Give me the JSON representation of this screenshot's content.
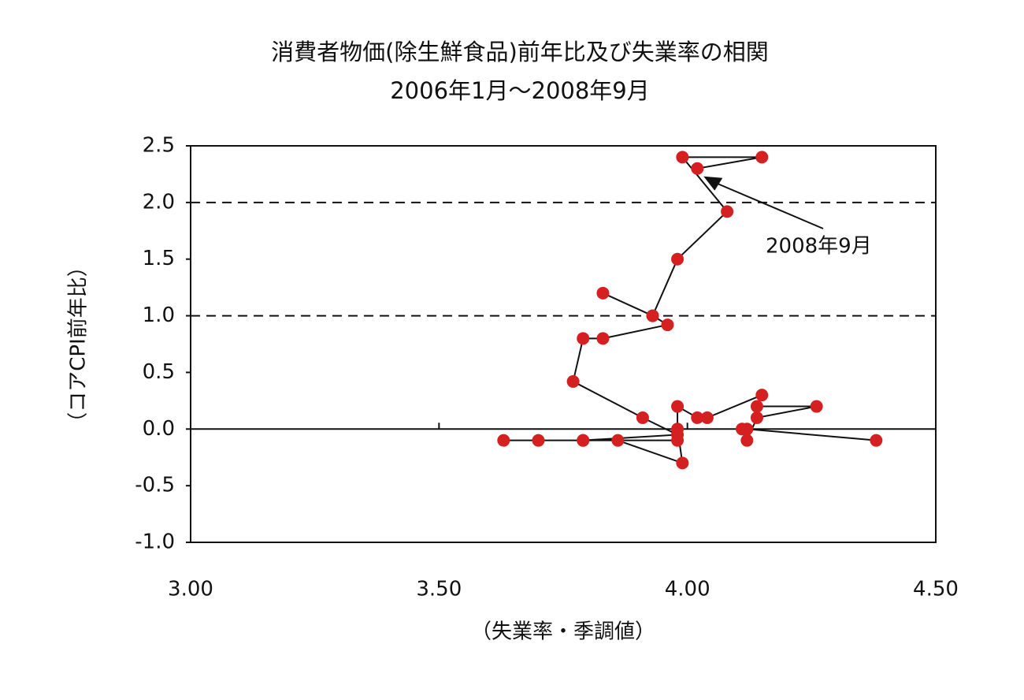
{
  "chart_data": {
    "type": "scatter",
    "title": "消費者物価(除生鮮食品)前年比及び失業率の相関",
    "subtitle": "2006年1月～2008年9月",
    "x_label": "（失業率・季調値）",
    "y_label": "（コアCPI前年比）",
    "series": [
      {
        "color": "#d42020",
        "line_color": "#111111",
        "x": [
          4.38,
          4.12,
          4.11,
          4.12,
          4.14,
          4.26,
          4.14,
          4.15,
          4.04,
          4.02,
          3.98,
          3.98,
          3.99,
          3.86,
          3.98,
          3.79,
          3.7,
          3.63,
          3.79,
          3.98,
          3.91,
          3.77,
          3.79,
          3.83,
          3.96,
          3.93,
          3.83,
          3.93,
          3.98,
          4.08,
          3.99,
          4.15,
          4.02
        ],
        "values": [
          -0.1,
          0.0,
          0.0,
          -0.1,
          0.1,
          0.2,
          0.2,
          0.3,
          0.1,
          0.1,
          0.2,
          0.0,
          -0.3,
          -0.1,
          -0.1,
          -0.1,
          -0.1,
          -0.1,
          -0.1,
          -0.05,
          0.1,
          0.42,
          0.8,
          0.8,
          0.92,
          1.0,
          1.2,
          1.0,
          1.5,
          1.92,
          2.4,
          2.4,
          2.3
        ]
      }
    ],
    "xlim": [
      3.0,
      4.5
    ],
    "xticks": [
      {
        "value": 3.0,
        "label": "3.00"
      },
      {
        "value": 3.5,
        "label": "3.50"
      },
      {
        "value": 4.0,
        "label": "4.00"
      },
      {
        "value": 4.5,
        "label": "4.50"
      }
    ],
    "ylim": [
      -1.0,
      2.5
    ],
    "yticks": [
      2.5,
      {
        "value": 2.0,
        "label": "2.0"
      },
      1.5,
      {
        "value": 1.0,
        "label": "1.0"
      },
      0.5,
      {
        "value": 0.0,
        "label": "0.0"
      },
      -0.5,
      {
        "value": -1.0,
        "label": "-1.0"
      }
    ],
    "dashed_lines": [
      1.0,
      2.0
    ],
    "solid_lines": [
      0.0
    ],
    "annotation": {
      "text": "2008年9月"
    }
  }
}
